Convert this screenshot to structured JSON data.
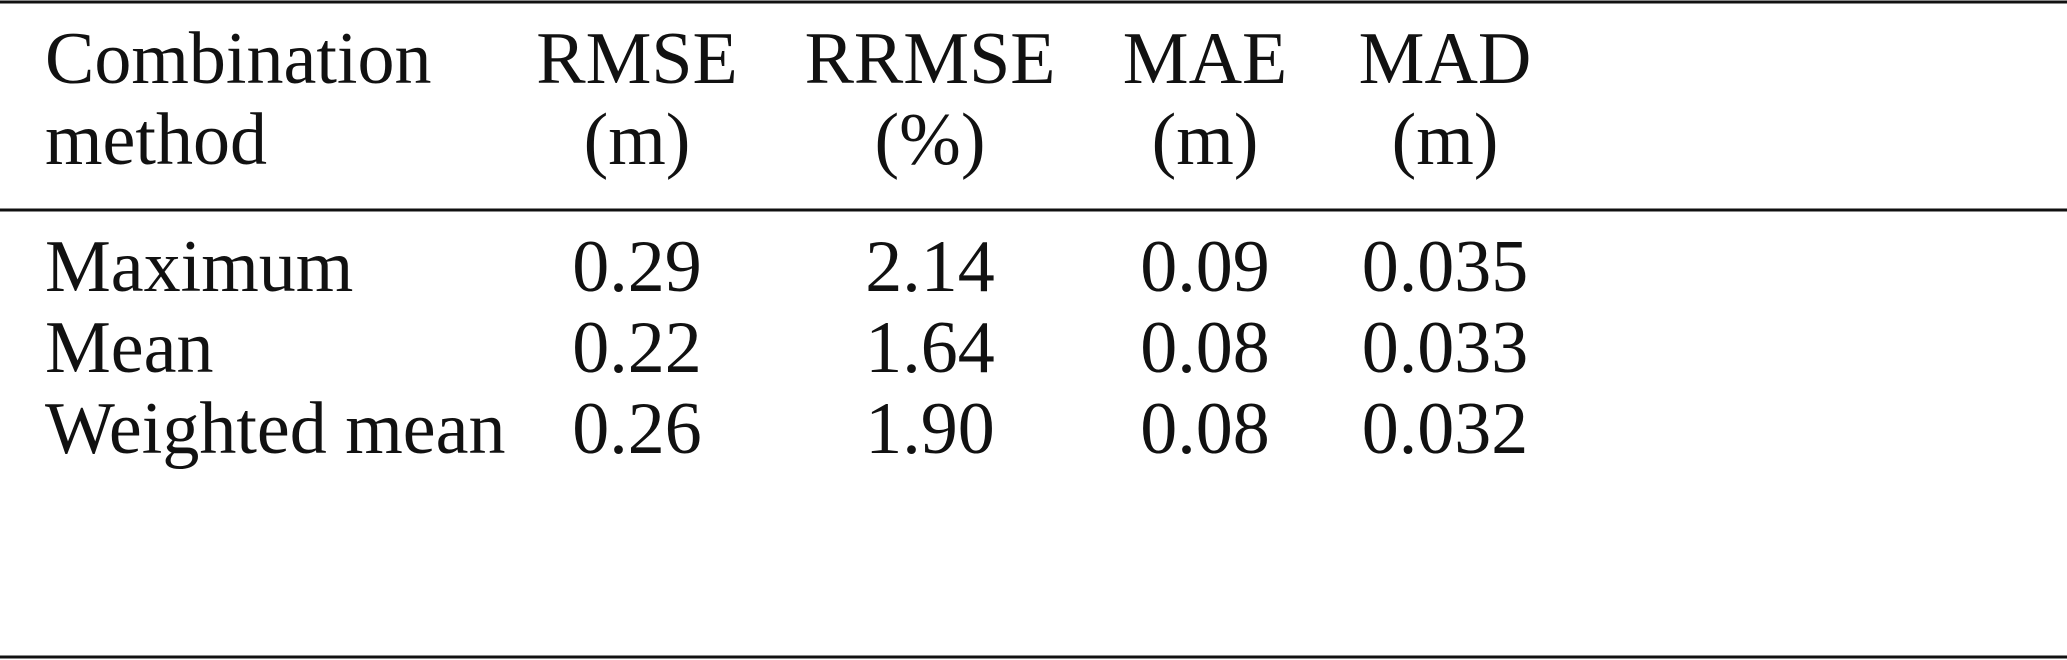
{
  "table": {
    "header": [
      [
        "Combination",
        "method"
      ],
      [
        "RMSE",
        "(m)"
      ],
      [
        "RRMSE",
        "(%)"
      ],
      [
        "MAE",
        "(m)"
      ],
      [
        "MAD",
        "(m)"
      ]
    ],
    "rows": [
      [
        "Maximum",
        "0.29",
        "2.14",
        "0.09",
        "0.035"
      ],
      [
        "Mean",
        "0.22",
        "1.64",
        "0.08",
        "0.033"
      ],
      [
        "Weighted mean",
        "0.26",
        "1.90",
        "0.08",
        "0.032"
      ]
    ]
  }
}
